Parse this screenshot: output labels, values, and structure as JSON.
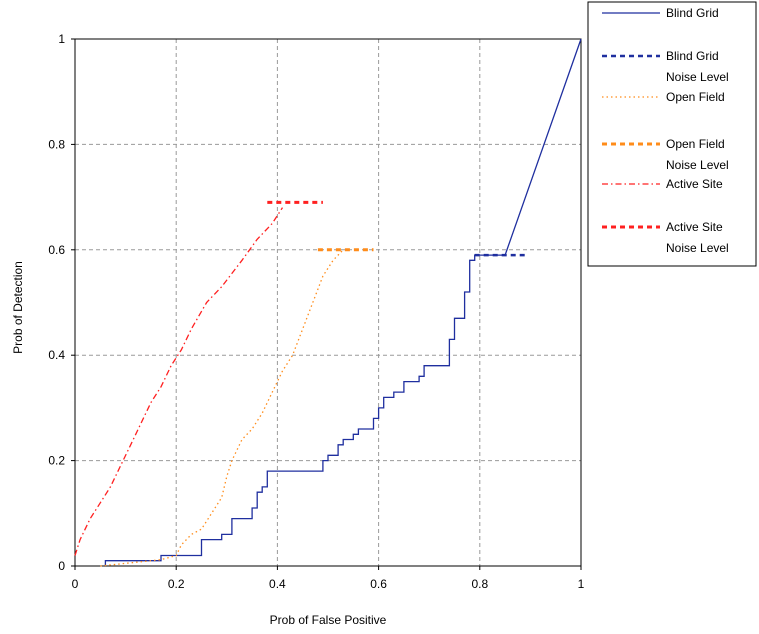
{
  "chart_data": {
    "type": "line",
    "xlabel": "Prob of False Positive",
    "ylabel": "Prob of Detection",
    "xlim": [
      0,
      1
    ],
    "ylim": [
      0,
      1
    ],
    "x_ticks": [
      "0",
      "0.2",
      "0.4",
      "0.6",
      "0.8",
      "1"
    ],
    "y_ticks": [
      "0",
      "0.2",
      "0.4",
      "0.6",
      "0.8",
      "1"
    ],
    "grid": true,
    "legend_position": "right",
    "legend": [
      {
        "lines": [
          "Blind Grid"
        ],
        "series": "blind_grid"
      },
      {
        "lines": [
          "Blind Grid",
          "Noise Level"
        ],
        "series": "blind_grid_noise"
      },
      {
        "lines": [
          "Open Field"
        ],
        "series": "open_field"
      },
      {
        "lines": [
          "Open Field",
          "Noise Level"
        ],
        "series": "open_field_noise"
      },
      {
        "lines": [
          "Active Site"
        ],
        "series": "active_site"
      },
      {
        "lines": [
          "Active Site",
          "Noise Level"
        ],
        "series": "active_site_noise"
      }
    ],
    "series": [
      {
        "id": "blind_grid",
        "color": "#1f2f9f",
        "style": "solid",
        "width": 1.3,
        "points": [
          [
            0.06,
            0
          ],
          [
            0.06,
            0.01
          ],
          [
            0.17,
            0.01
          ],
          [
            0.17,
            0.02
          ],
          [
            0.25,
            0.02
          ],
          [
            0.25,
            0.05
          ],
          [
            0.29,
            0.05
          ],
          [
            0.29,
            0.06
          ],
          [
            0.31,
            0.06
          ],
          [
            0.31,
            0.09
          ],
          [
            0.35,
            0.09
          ],
          [
            0.35,
            0.11
          ],
          [
            0.36,
            0.11
          ],
          [
            0.36,
            0.14
          ],
          [
            0.37,
            0.14
          ],
          [
            0.37,
            0.15
          ],
          [
            0.38,
            0.15
          ],
          [
            0.38,
            0.18
          ],
          [
            0.49,
            0.18
          ],
          [
            0.49,
            0.2
          ],
          [
            0.5,
            0.2
          ],
          [
            0.5,
            0.21
          ],
          [
            0.52,
            0.21
          ],
          [
            0.52,
            0.23
          ],
          [
            0.53,
            0.23
          ],
          [
            0.53,
            0.24
          ],
          [
            0.55,
            0.24
          ],
          [
            0.55,
            0.25
          ],
          [
            0.56,
            0.25
          ],
          [
            0.56,
            0.26
          ],
          [
            0.59,
            0.26
          ],
          [
            0.59,
            0.28
          ],
          [
            0.6,
            0.28
          ],
          [
            0.6,
            0.3
          ],
          [
            0.61,
            0.3
          ],
          [
            0.61,
            0.32
          ],
          [
            0.63,
            0.32
          ],
          [
            0.63,
            0.33
          ],
          [
            0.65,
            0.33
          ],
          [
            0.65,
            0.35
          ],
          [
            0.68,
            0.35
          ],
          [
            0.68,
            0.36
          ],
          [
            0.69,
            0.36
          ],
          [
            0.69,
            0.38
          ],
          [
            0.74,
            0.38
          ],
          [
            0.74,
            0.43
          ],
          [
            0.75,
            0.43
          ],
          [
            0.75,
            0.47
          ],
          [
            0.77,
            0.47
          ],
          [
            0.77,
            0.52
          ],
          [
            0.78,
            0.52
          ],
          [
            0.78,
            0.58
          ],
          [
            0.79,
            0.58
          ],
          [
            0.79,
            0.59
          ],
          [
            0.85,
            0.59
          ],
          [
            1.0,
            1.0
          ]
        ]
      },
      {
        "id": "blind_grid_noise",
        "color": "#1f2f9f",
        "style": "dash",
        "width": 2.5,
        "points": [
          [
            0.79,
            0.59
          ],
          [
            0.89,
            0.59
          ]
        ]
      },
      {
        "id": "open_field",
        "color": "#ff8c1a",
        "style": "dot",
        "width": 1.3,
        "points": [
          [
            0.05,
            0
          ],
          [
            0.08,
            0.003
          ],
          [
            0.12,
            0.007
          ],
          [
            0.17,
            0.012
          ],
          [
            0.2,
            0.02
          ],
          [
            0.21,
            0.04
          ],
          [
            0.23,
            0.06
          ],
          [
            0.25,
            0.07
          ],
          [
            0.27,
            0.1
          ],
          [
            0.29,
            0.13
          ],
          [
            0.3,
            0.17
          ],
          [
            0.31,
            0.2
          ],
          [
            0.33,
            0.24
          ],
          [
            0.35,
            0.26
          ],
          [
            0.37,
            0.29
          ],
          [
            0.39,
            0.33
          ],
          [
            0.41,
            0.37
          ],
          [
            0.43,
            0.4
          ],
          [
            0.45,
            0.45
          ],
          [
            0.47,
            0.5
          ],
          [
            0.49,
            0.55
          ],
          [
            0.51,
            0.58
          ],
          [
            0.53,
            0.6
          ]
        ]
      },
      {
        "id": "open_field_noise",
        "color": "#ff8c1a",
        "style": "dash",
        "width": 3,
        "points": [
          [
            0.48,
            0.6
          ],
          [
            0.59,
            0.6
          ]
        ]
      },
      {
        "id": "active_site",
        "color": "#ff2020",
        "style": "dashdot",
        "width": 1.3,
        "points": [
          [
            0,
            0.02
          ],
          [
            0.01,
            0.05
          ],
          [
            0.03,
            0.09
          ],
          [
            0.05,
            0.12
          ],
          [
            0.07,
            0.15
          ],
          [
            0.09,
            0.19
          ],
          [
            0.11,
            0.23
          ],
          [
            0.13,
            0.27
          ],
          [
            0.15,
            0.31
          ],
          [
            0.17,
            0.34
          ],
          [
            0.19,
            0.38
          ],
          [
            0.21,
            0.41
          ],
          [
            0.23,
            0.45
          ],
          [
            0.26,
            0.5
          ],
          [
            0.29,
            0.53
          ],
          [
            0.33,
            0.58
          ],
          [
            0.36,
            0.62
          ],
          [
            0.39,
            0.65
          ],
          [
            0.41,
            0.68
          ]
        ]
      },
      {
        "id": "active_site_noise",
        "color": "#ff2020",
        "style": "dash",
        "width": 3,
        "points": [
          [
            0.38,
            0.69
          ],
          [
            0.49,
            0.69
          ]
        ]
      }
    ]
  }
}
